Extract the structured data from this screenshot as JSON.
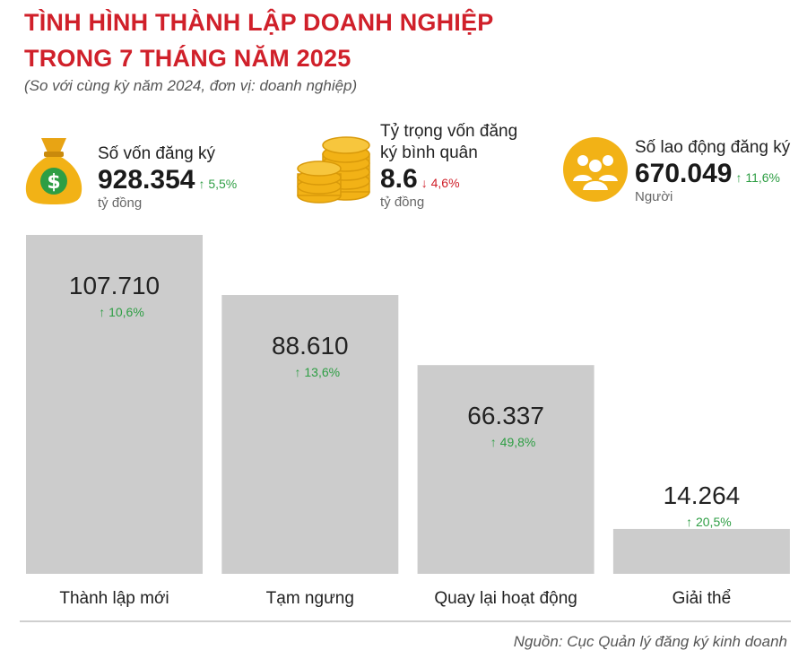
{
  "header": {
    "title_line1": "TÌNH HÌNH THÀNH LẬP DOANH NGHIỆP",
    "title_line2": "TRONG 7 THÁNG NĂM 2025",
    "subtitle": "(So với cùng kỳ năm 2024, đơn vị: doanh nghiệp)",
    "title_color": "#d0202a"
  },
  "stats": {
    "capital": {
      "label": "Số vốn đăng ký",
      "value": "928.354",
      "change": "5,5%",
      "direction": "up",
      "unit": "tỷ đồng",
      "icon": "money-bag-icon"
    },
    "avg_capital": {
      "label_line1": "Tỷ trọng vốn đăng",
      "label_line2": "ký bình quân",
      "value": "8.6",
      "change": "4,6%",
      "direction": "down",
      "unit": "tỷ đồng",
      "icon": "coin-stack-icon"
    },
    "workers": {
      "label": "Số lao động đăng ký",
      "value": "670.049",
      "change": "11,6%",
      "direction": "up",
      "unit": "Người",
      "icon": "people-icon"
    }
  },
  "arrows": {
    "up": "↑",
    "down": "↓"
  },
  "colors": {
    "bar": "#cccccc",
    "up": "#2e9e44",
    "down": "#d0202a",
    "icon_gold": "#f2b216"
  },
  "chart_data": {
    "type": "bar",
    "categories": [
      "Thành lập mới",
      "Tạm ngưng",
      "Quay lại hoạt động",
      "Giải thể"
    ],
    "values": [
      107710,
      88610,
      66337,
      14264
    ],
    "value_labels": [
      "107.710",
      "88.610",
      "66.337",
      "14.264"
    ],
    "changes": [
      "10,6%",
      "13,6%",
      "49,8%",
      "20,5%"
    ],
    "change_directions": [
      "up",
      "up",
      "up",
      "up"
    ],
    "title": "",
    "xlabel": "",
    "ylabel": "",
    "ylim": [
      0,
      110000
    ],
    "grid": false,
    "legend": "none"
  },
  "footer": {
    "source": "Nguồn: Cục Quản lý đăng ký kinh doanh"
  }
}
